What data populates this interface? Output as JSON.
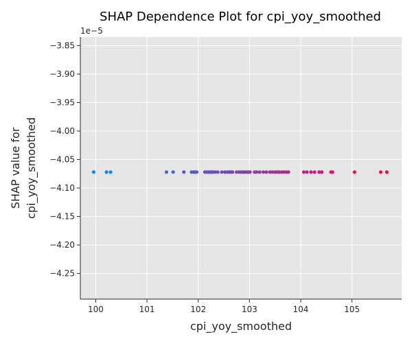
{
  "chart_data": {
    "type": "scatter",
    "title": "SHAP Dependence Plot for cpi_yoy_smoothed",
    "xlabel": "cpi_yoy_smoothed",
    "ylabel_lines": [
      "SHAP value for",
      "cpi_yoy_smoothed"
    ],
    "y_offset_label": "1e−5",
    "xlim": [
      99.7,
      105.97
    ],
    "ylim": [
      -4.295,
      -3.835
    ],
    "x_ticks": [
      100,
      101,
      102,
      103,
      104,
      105
    ],
    "x_tick_labels": [
      "100",
      "101",
      "102",
      "103",
      "104",
      "105"
    ],
    "y_ticks": [
      -3.85,
      -3.9,
      -3.95,
      -4.0,
      -4.05,
      -4.1,
      -4.15,
      -4.2,
      -4.25
    ],
    "y_tick_labels": [
      "−3.85",
      "−3.90",
      "−3.95",
      "−4.00",
      "−4.05",
      "−4.10",
      "−4.15",
      "−4.20",
      "−4.25"
    ],
    "grid": true,
    "background_color": "#e5e5e5",
    "color_low": "#008bfb",
    "color_high": "#ff0052",
    "points": {
      "y": -4.072,
      "x": [
        99.96,
        100.21,
        100.29,
        101.38,
        101.51,
        101.72,
        101.87,
        101.91,
        101.93,
        101.97,
        102.13,
        102.17,
        102.2,
        102.23,
        102.26,
        102.29,
        102.33,
        102.38,
        102.46,
        102.52,
        102.57,
        102.61,
        102.64,
        102.67,
        102.75,
        102.8,
        102.84,
        102.88,
        102.91,
        102.95,
        102.98,
        103.01,
        103.1,
        103.14,
        103.2,
        103.27,
        103.33,
        103.4,
        103.45,
        103.5,
        103.54,
        103.58,
        103.63,
        103.67,
        103.72,
        103.76,
        104.06,
        104.12,
        104.2,
        104.27,
        104.36,
        104.41,
        104.59,
        104.62,
        105.05,
        105.56,
        105.68
      ]
    }
  }
}
